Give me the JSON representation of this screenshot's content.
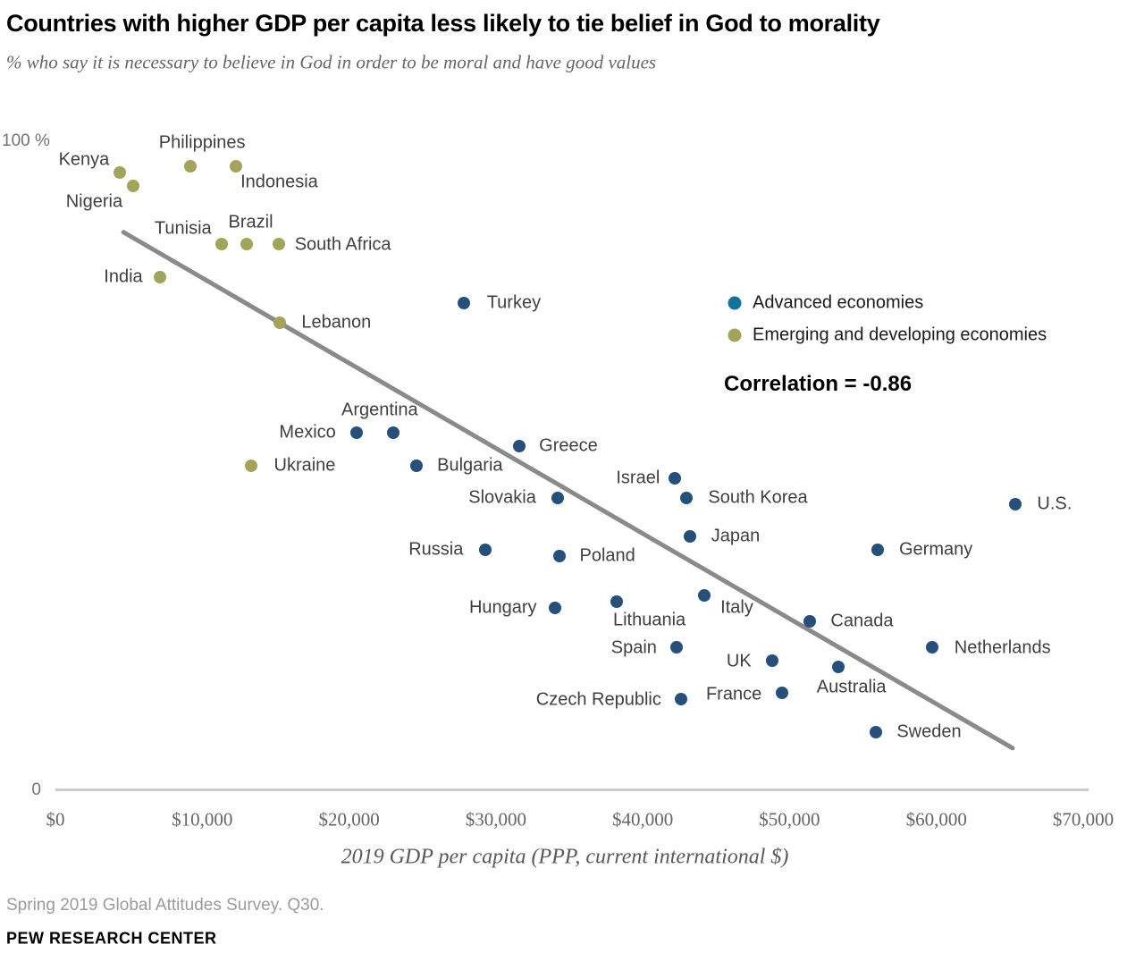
{
  "header": {
    "title": "Countries with higher GDP per capita less likely to tie belief in God to morality",
    "subtitle": "% who say it is necessary to believe in God in order to be moral and have good values"
  },
  "legend": {
    "items": [
      {
        "label": "Advanced economies",
        "color": "#10739C"
      },
      {
        "label": "Emerging and developing economies",
        "color": "#A1A558"
      }
    ]
  },
  "chart_data": {
    "type": "scatter",
    "x_axis": {
      "label": "2019 GDP per capita (PPP, current international $)",
      "range": [
        0,
        70000
      ],
      "tick_values": [
        0,
        10000,
        20000,
        30000,
        40000,
        50000,
        60000,
        70000
      ],
      "ticks": [
        "$0",
        "$10,000",
        "$20,000",
        "$30,000",
        "$40,000",
        "$50,000",
        "$60,000",
        "$70,000"
      ]
    },
    "y_axis": {
      "range": [
        0,
        100
      ],
      "top_label": "100 %",
      "bottom_label": "0"
    },
    "correlation": -0.86,
    "correlation_text": "Correlation = -0.86",
    "trendline": {
      "x1": 4500,
      "y1": 86,
      "x2": 65300,
      "y2": 6.3
    },
    "series": [
      {
        "name": "Advanced economies",
        "color": "#24507C",
        "points": [
          {
            "name": "Turkey",
            "gdp": 27800,
            "pct": 75,
            "anchor": "start",
            "dx": 26,
            "dy": 0
          },
          {
            "name": "Mexico",
            "gdp": 20500,
            "pct": 55,
            "anchor": "end",
            "dx": -23,
            "dy": 0
          },
          {
            "name": "Argentina",
            "gdp": 23000,
            "pct": 55,
            "anchor": "mid",
            "dx": -15,
            "dy": -25
          },
          {
            "name": "Greece",
            "gdp": 31600,
            "pct": 53,
            "anchor": "start",
            "dx": 22,
            "dy": 0
          },
          {
            "name": "Bulgaria",
            "gdp": 24600,
            "pct": 50,
            "anchor": "start",
            "dx": 23,
            "dy": 0
          },
          {
            "name": "Slovakia",
            "gdp": 34200,
            "pct": 45,
            "anchor": "end",
            "dx": -24,
            "dy": 0
          },
          {
            "name": "Israel",
            "gdp": 42200,
            "pct": 48,
            "anchor": "end",
            "dx": -17,
            "dy": 0
          },
          {
            "name": "South Korea",
            "gdp": 43000,
            "pct": 45,
            "anchor": "start",
            "dx": 24,
            "dy": 0
          },
          {
            "name": "Japan",
            "gdp": 43200,
            "pct": 39,
            "anchor": "start",
            "dx": 24,
            "dy": 0
          },
          {
            "name": "Russia",
            "gdp": 29300,
            "pct": 37,
            "anchor": "end",
            "dx": -25,
            "dy": 0
          },
          {
            "name": "Poland",
            "gdp": 34300,
            "pct": 36,
            "anchor": "start",
            "dx": 23,
            "dy": 0
          },
          {
            "name": "Germany",
            "gdp": 56000,
            "pct": 37,
            "anchor": "start",
            "dx": 24,
            "dy": 0
          },
          {
            "name": "U.S.",
            "gdp": 65400,
            "pct": 44,
            "anchor": "start",
            "dx": 24,
            "dy": 0
          },
          {
            "name": "Hungary",
            "gdp": 34000,
            "pct": 28,
            "anchor": "end",
            "dx": -20,
            "dy": 0
          },
          {
            "name": "Lithuania",
            "gdp": 38200,
            "pct": 29,
            "anchor": "mid",
            "dx": 37,
            "dy": 21
          },
          {
            "name": "Italy",
            "gdp": 44200,
            "pct": 30,
            "anchor": "start",
            "dx": 18,
            "dy": 14
          },
          {
            "name": "Canada",
            "gdp": 51400,
            "pct": 26,
            "anchor": "start",
            "dx": 23,
            "dy": 0
          },
          {
            "name": "Spain",
            "gdp": 42300,
            "pct": 22,
            "anchor": "end",
            "dx": -22,
            "dy": 1
          },
          {
            "name": "Netherlands",
            "gdp": 59700,
            "pct": 22,
            "anchor": "start",
            "dx": 25,
            "dy": 1
          },
          {
            "name": "UK",
            "gdp": 48800,
            "pct": 20,
            "anchor": "end",
            "dx": -23,
            "dy": 1
          },
          {
            "name": "Australia",
            "gdp": 53300,
            "pct": 19,
            "anchor": "mid",
            "dx": 15,
            "dy": 23
          },
          {
            "name": "France",
            "gdp": 49500,
            "pct": 15,
            "anchor": "end",
            "dx": -23,
            "dy": 2
          },
          {
            "name": "Czech Republic",
            "gdp": 42600,
            "pct": 14,
            "anchor": "end",
            "dx": -22,
            "dy": 1
          },
          {
            "name": "Sweden",
            "gdp": 55900,
            "pct": 9,
            "anchor": "start",
            "dx": 23,
            "dy": 0
          }
        ]
      },
      {
        "name": "Emerging and developing economies",
        "color": "#A1A558",
        "points": [
          {
            "name": "Kenya",
            "gdp": 4400,
            "pct": 95,
            "anchor": "end",
            "dx": -12,
            "dy": -14
          },
          {
            "name": "Nigeria",
            "gdp": 5300,
            "pct": 93,
            "anchor": "end",
            "dx": -12,
            "dy": 18
          },
          {
            "name": "Philippines",
            "gdp": 9200,
            "pct": 96,
            "anchor": "mid",
            "dx": 13,
            "dy": -26
          },
          {
            "name": "Indonesia",
            "gdp": 12300,
            "pct": 96,
            "anchor": "start",
            "dx": 5,
            "dy": 18
          },
          {
            "name": "Tunisia",
            "gdp": 11300,
            "pct": 84,
            "anchor": "end",
            "dx": -11,
            "dy": -17
          },
          {
            "name": "Brazil",
            "gdp": 13000,
            "pct": 84,
            "anchor": "mid",
            "dx": 5,
            "dy": -24
          },
          {
            "name": "South Africa",
            "gdp": 15200,
            "pct": 84,
            "anchor": "start",
            "dx": 18,
            "dy": 1
          },
          {
            "name": "India",
            "gdp": 7100,
            "pct": 79,
            "anchor": "end",
            "dx": -19,
            "dy": 0
          },
          {
            "name": "Lebanon",
            "gdp": 15300,
            "pct": 72,
            "anchor": "start",
            "dx": 24,
            "dy": 0
          },
          {
            "name": "Ukraine",
            "gdp": 13300,
            "pct": 50,
            "anchor": "start",
            "dx": 26,
            "dy": 0
          }
        ]
      }
    ]
  },
  "footer": {
    "source": "Spring 2019 Global Attitudes Survey. Q30.",
    "brand": "PEW RESEARCH CENTER"
  }
}
